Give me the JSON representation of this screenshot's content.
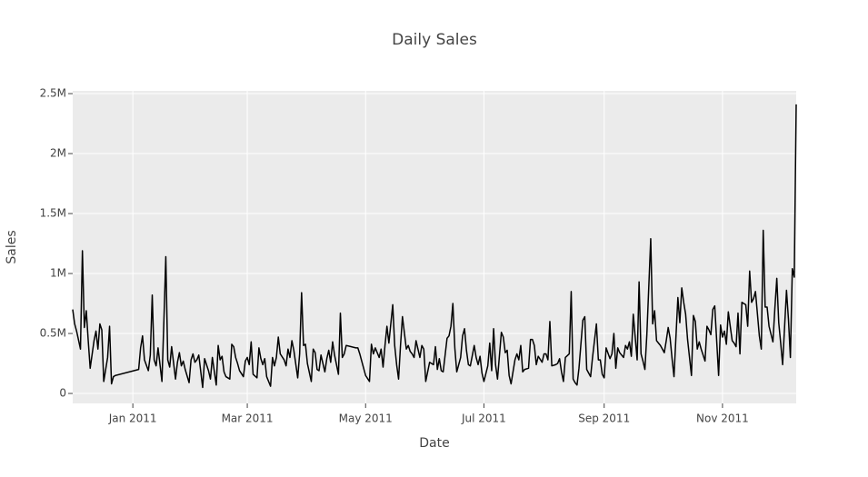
{
  "chart_data": {
    "type": "line",
    "title": "Daily Sales",
    "x_label": "Date",
    "y_label": "Sales",
    "color": "#000000",
    "grid": true,
    "xlim": [
      "2010-12-01",
      "2011-12-09"
    ],
    "xticks": [
      {
        "value": "2011-01-01",
        "label": "Jan 2011"
      },
      {
        "value": "2011-03-01",
        "label": "Mar 2011"
      },
      {
        "value": "2011-05-01",
        "label": "May 2011"
      },
      {
        "value": "2011-07-01",
        "label": "Jul 2011"
      },
      {
        "value": "2011-09-01",
        "label": "Sep 2011"
      },
      {
        "value": "2011-11-01",
        "label": "Nov 2011"
      }
    ],
    "ylim": [
      -83000,
      2523000
    ],
    "yticks": [
      {
        "value": 0,
        "label": "0"
      },
      {
        "value": 500000,
        "label": "0.5M"
      },
      {
        "value": 1000000,
        "label": "1M"
      },
      {
        "value": 1500000,
        "label": "1.5M"
      },
      {
        "value": 2000000,
        "label": "2M"
      },
      {
        "value": 2500000,
        "label": "2.5M"
      }
    ],
    "x": [
      "2010-12-01",
      "2010-12-02",
      "2010-12-03",
      "2010-12-05",
      "2010-12-06",
      "2010-12-07",
      "2010-12-08",
      "2010-12-09",
      "2010-12-10",
      "2010-12-12",
      "2010-12-13",
      "2010-12-14",
      "2010-12-15",
      "2010-12-16",
      "2010-12-17",
      "2010-12-19",
      "2010-12-20",
      "2010-12-21",
      "2010-12-22",
      "2010-12-23",
      "2011-01-04",
      "2011-01-05",
      "2011-01-06",
      "2011-01-07",
      "2011-01-09",
      "2011-01-10",
      "2011-01-11",
      "2011-01-12",
      "2011-01-13",
      "2011-01-14",
      "2011-01-16",
      "2011-01-17",
      "2011-01-18",
      "2011-01-19",
      "2011-01-20",
      "2011-01-21",
      "2011-01-23",
      "2011-01-24",
      "2011-01-25",
      "2011-01-26",
      "2011-01-27",
      "2011-01-28",
      "2011-01-30",
      "2011-01-31",
      "2011-02-01",
      "2011-02-02",
      "2011-02-03",
      "2011-02-04",
      "2011-02-06",
      "2011-02-07",
      "2011-02-08",
      "2011-02-09",
      "2011-02-10",
      "2011-02-11",
      "2011-02-13",
      "2011-02-14",
      "2011-02-15",
      "2011-02-16",
      "2011-02-17",
      "2011-02-18",
      "2011-02-20",
      "2011-02-21",
      "2011-02-22",
      "2011-02-23",
      "2011-02-24",
      "2011-02-25",
      "2011-02-27",
      "2011-02-28",
      "2011-03-01",
      "2011-03-02",
      "2011-03-03",
      "2011-03-04",
      "2011-03-06",
      "2011-03-07",
      "2011-03-08",
      "2011-03-09",
      "2011-03-10",
      "2011-03-11",
      "2011-03-13",
      "2011-03-14",
      "2011-03-15",
      "2011-03-16",
      "2011-03-17",
      "2011-03-18",
      "2011-03-20",
      "2011-03-21",
      "2011-03-22",
      "2011-03-23",
      "2011-03-24",
      "2011-03-25",
      "2011-03-27",
      "2011-03-28",
      "2011-03-29",
      "2011-03-30",
      "2011-03-31",
      "2011-04-01",
      "2011-04-03",
      "2011-04-04",
      "2011-04-05",
      "2011-04-06",
      "2011-04-07",
      "2011-04-08",
      "2011-04-10",
      "2011-04-11",
      "2011-04-12",
      "2011-04-13",
      "2011-04-14",
      "2011-04-15",
      "2011-04-17",
      "2011-04-18",
      "2011-04-19",
      "2011-04-20",
      "2011-04-21",
      "2011-04-26",
      "2011-04-27",
      "2011-04-28",
      "2011-04-29",
      "2011-05-01",
      "2011-05-03",
      "2011-05-04",
      "2011-05-05",
      "2011-05-06",
      "2011-05-08",
      "2011-05-09",
      "2011-05-10",
      "2011-05-11",
      "2011-05-12",
      "2011-05-13",
      "2011-05-15",
      "2011-05-16",
      "2011-05-17",
      "2011-05-18",
      "2011-05-19",
      "2011-05-20",
      "2011-05-22",
      "2011-05-23",
      "2011-05-24",
      "2011-05-25",
      "2011-05-26",
      "2011-05-27",
      "2011-05-29",
      "2011-05-30",
      "2011-05-31",
      "2011-06-01",
      "2011-06-02",
      "2011-06-03",
      "2011-06-05",
      "2011-06-06",
      "2011-06-07",
      "2011-06-08",
      "2011-06-09",
      "2011-06-10",
      "2011-06-12",
      "2011-06-13",
      "2011-06-14",
      "2011-06-15",
      "2011-06-16",
      "2011-06-17",
      "2011-06-19",
      "2011-06-20",
      "2011-06-21",
      "2011-06-22",
      "2011-06-23",
      "2011-06-24",
      "2011-06-26",
      "2011-06-27",
      "2011-06-28",
      "2011-06-29",
      "2011-06-30",
      "2011-07-01",
      "2011-07-03",
      "2011-07-04",
      "2011-07-05",
      "2011-07-06",
      "2011-07-07",
      "2011-07-08",
      "2011-07-10",
      "2011-07-11",
      "2011-07-12",
      "2011-07-13",
      "2011-07-14",
      "2011-07-15",
      "2011-07-17",
      "2011-07-18",
      "2011-07-19",
      "2011-07-20",
      "2011-07-21",
      "2011-07-22",
      "2011-07-24",
      "2011-07-25",
      "2011-07-26",
      "2011-07-27",
      "2011-07-28",
      "2011-07-29",
      "2011-07-31",
      "2011-08-01",
      "2011-08-02",
      "2011-08-03",
      "2011-08-04",
      "2011-08-05",
      "2011-08-07",
      "2011-08-08",
      "2011-08-09",
      "2011-08-10",
      "2011-08-11",
      "2011-08-12",
      "2011-08-14",
      "2011-08-15",
      "2011-08-16",
      "2011-08-17",
      "2011-08-18",
      "2011-08-19",
      "2011-08-21",
      "2011-08-22",
      "2011-08-23",
      "2011-08-24",
      "2011-08-25",
      "2011-08-26",
      "2011-08-28",
      "2011-08-29",
      "2011-08-30",
      "2011-08-31",
      "2011-09-01",
      "2011-09-02",
      "2011-09-04",
      "2011-09-05",
      "2011-09-06",
      "2011-09-07",
      "2011-09-08",
      "2011-09-09",
      "2011-09-11",
      "2011-09-12",
      "2011-09-13",
      "2011-09-14",
      "2011-09-15",
      "2011-09-16",
      "2011-09-18",
      "2011-09-19",
      "2011-09-20",
      "2011-09-21",
      "2011-09-22",
      "2011-09-23",
      "2011-09-25",
      "2011-09-26",
      "2011-09-27",
      "2011-09-28",
      "2011-09-29",
      "2011-09-30",
      "2011-10-02",
      "2011-10-03",
      "2011-10-04",
      "2011-10-05",
      "2011-10-06",
      "2011-10-07",
      "2011-10-09",
      "2011-10-10",
      "2011-10-11",
      "2011-10-12",
      "2011-10-13",
      "2011-10-14",
      "2011-10-16",
      "2011-10-17",
      "2011-10-18",
      "2011-10-19",
      "2011-10-20",
      "2011-10-21",
      "2011-10-23",
      "2011-10-24",
      "2011-10-25",
      "2011-10-26",
      "2011-10-27",
      "2011-10-28",
      "2011-10-30",
      "2011-10-31",
      "2011-11-01",
      "2011-11-02",
      "2011-11-03",
      "2011-11-04",
      "2011-11-06",
      "2011-11-07",
      "2011-11-08",
      "2011-11-09",
      "2011-11-10",
      "2011-11-11",
      "2011-11-13",
      "2011-11-14",
      "2011-11-15",
      "2011-11-16",
      "2011-11-17",
      "2011-11-18",
      "2011-11-20",
      "2011-11-21",
      "2011-11-22",
      "2011-11-23",
      "2011-11-24",
      "2011-11-25",
      "2011-11-27",
      "2011-11-28",
      "2011-11-29",
      "2011-11-30",
      "2011-12-01",
      "2011-12-02",
      "2011-12-04",
      "2011-12-05",
      "2011-12-06",
      "2011-12-07",
      "2011-12-08",
      "2011-12-09"
    ],
    "values": [
      700000,
      580000,
      520000,
      370000,
      1190000,
      550000,
      690000,
      440000,
      210000,
      440000,
      520000,
      370000,
      580000,
      530000,
      100000,
      300000,
      560000,
      80000,
      140000,
      150000,
      200000,
      380000,
      480000,
      280000,
      190000,
      320000,
      820000,
      280000,
      230000,
      380000,
      100000,
      600000,
      1140000,
      280000,
      220000,
      390000,
      120000,
      260000,
      340000,
      230000,
      270000,
      200000,
      90000,
      280000,
      330000,
      260000,
      280000,
      320000,
      50000,
      290000,
      240000,
      190000,
      120000,
      300000,
      70000,
      400000,
      280000,
      310000,
      180000,
      140000,
      120000,
      410000,
      390000,
      300000,
      250000,
      190000,
      140000,
      270000,
      300000,
      240000,
      430000,
      160000,
      130000,
      380000,
      290000,
      240000,
      290000,
      140000,
      60000,
      300000,
      230000,
      300000,
      470000,
      330000,
      280000,
      230000,
      370000,
      300000,
      440000,
      360000,
      130000,
      330000,
      840000,
      400000,
      410000,
      250000,
      100000,
      370000,
      340000,
      200000,
      190000,
      320000,
      180000,
      290000,
      360000,
      260000,
      430000,
      320000,
      160000,
      670000,
      300000,
      330000,
      400000,
      380000,
      380000,
      330000,
      270000,
      150000,
      100000,
      410000,
      330000,
      380000,
      300000,
      370000,
      220000,
      400000,
      560000,
      420000,
      740000,
      400000,
      240000,
      120000,
      400000,
      640000,
      370000,
      400000,
      350000,
      330000,
      300000,
      440000,
      300000,
      400000,
      370000,
      100000,
      180000,
      260000,
      240000,
      390000,
      200000,
      290000,
      190000,
      180000,
      460000,
      480000,
      560000,
      750000,
      380000,
      180000,
      300000,
      480000,
      540000,
      360000,
      240000,
      230000,
      400000,
      300000,
      240000,
      310000,
      170000,
      100000,
      230000,
      420000,
      190000,
      540000,
      240000,
      120000,
      510000,
      470000,
      340000,
      360000,
      150000,
      80000,
      280000,
      330000,
      280000,
      400000,
      180000,
      200000,
      210000,
      450000,
      450000,
      400000,
      240000,
      310000,
      260000,
      330000,
      330000,
      280000,
      600000,
      230000,
      240000,
      250000,
      290000,
      180000,
      100000,
      300000,
      330000,
      850000,
      120000,
      90000,
      70000,
      210000,
      610000,
      640000,
      200000,
      170000,
      140000,
      300000,
      580000,
      280000,
      280000,
      160000,
      130000,
      380000,
      290000,
      330000,
      500000,
      210000,
      380000,
      340000,
      300000,
      400000,
      370000,
      430000,
      310000,
      660000,
      280000,
      930000,
      330000,
      270000,
      200000,
      490000,
      1290000,
      580000,
      690000,
      440000,
      420000,
      400000,
      340000,
      440000,
      550000,
      460000,
      290000,
      140000,
      800000,
      590000,
      880000,
      760000,
      660000,
      450000,
      150000,
      650000,
      600000,
      370000,
      430000,
      370000,
      270000,
      560000,
      530000,
      490000,
      700000,
      730000,
      150000,
      570000,
      470000,
      520000,
      410000,
      680000,
      440000,
      420000,
      390000,
      670000,
      330000,
      760000,
      740000,
      560000,
      1020000,
      760000,
      790000,
      850000,
      480000,
      370000,
      1360000,
      720000,
      720000,
      560000,
      430000,
      710000,
      960000,
      590000,
      420000,
      240000,
      860000,
      620000,
      300000,
      1040000,
      970000,
      2410000
    ]
  }
}
